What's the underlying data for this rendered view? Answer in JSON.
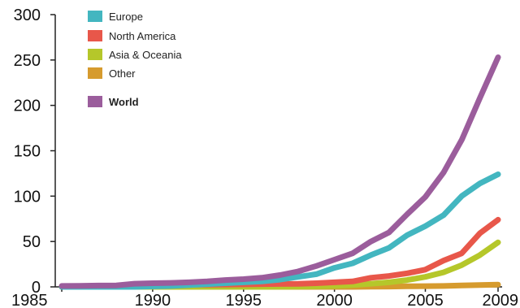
{
  "chart_data": {
    "type": "line",
    "title": "",
    "xlabel": "",
    "ylabel": "",
    "xlim": [
      1985,
      2009
    ],
    "ylim": [
      0,
      300
    ],
    "x_ticks": [
      1985,
      1990,
      1995,
      2000,
      2005,
      2009
    ],
    "y_ticks": [
      0,
      50,
      100,
      150,
      200,
      250,
      300
    ],
    "grid": false,
    "legend_position": "top-left",
    "x": [
      1985,
      1986,
      1987,
      1988,
      1989,
      1990,
      1991,
      1992,
      1993,
      1994,
      1995,
      1996,
      1997,
      1998,
      1999,
      2000,
      2001,
      2002,
      2003,
      2004,
      2005,
      2006,
      2007,
      2008,
      2009
    ],
    "series": [
      {
        "name": "Other",
        "color": "#d69b2e",
        "values": [
          0,
          0,
          0,
          0,
          0,
          0,
          0,
          0,
          0,
          0,
          0,
          0,
          0,
          0,
          0,
          0,
          0,
          0.2,
          0.4,
          0.6,
          0.8,
          1.0,
          1.5,
          2.0,
          2.5
        ]
      },
      {
        "name": "Asia & Oceania",
        "color": "#b5c72a",
        "values": [
          0,
          0,
          0,
          0,
          0,
          0,
          0,
          0,
          0,
          0,
          0,
          0,
          0.1,
          0.2,
          0.5,
          1,
          2,
          3.5,
          5,
          7.5,
          11,
          16,
          24,
          35,
          49
        ]
      },
      {
        "name": "North America",
        "color": "#e8574a",
        "values": [
          0.8,
          0.9,
          1.0,
          1.2,
          1.5,
          2,
          2.2,
          2.4,
          2.5,
          2.6,
          2.8,
          3,
          3.2,
          3.4,
          4,
          5,
          6,
          10,
          12,
          15,
          19,
          29,
          37,
          59,
          74
        ]
      },
      {
        "name": "Europe",
        "color": "#43b6c0",
        "values": [
          0,
          0,
          0,
          0,
          0,
          0.5,
          1,
          2,
          3,
          4,
          5,
          6,
          8,
          11,
          14,
          21,
          26,
          35,
          43,
          57,
          67,
          79,
          100,
          114,
          124
        ]
      },
      {
        "name": "World",
        "color": "#9b5d9c",
        "values": [
          1,
          1.2,
          1.4,
          1.6,
          3.5,
          4,
          4.4,
          5,
          6,
          7.5,
          8.5,
          10,
          13,
          17,
          23,
          30,
          37,
          50,
          60,
          80,
          99,
          126,
          162,
          208,
          253
        ]
      }
    ],
    "legend": [
      {
        "name": "Europe",
        "color": "#43b6c0",
        "bold": false
      },
      {
        "name": "North America",
        "color": "#e8574a",
        "bold": false
      },
      {
        "name": "Asia & Oceania",
        "color": "#b5c72a",
        "bold": false
      },
      {
        "name": "Other",
        "color": "#d69b2e",
        "bold": false
      },
      {
        "name": "World",
        "color": "#9b5d9c",
        "bold": true
      }
    ]
  }
}
